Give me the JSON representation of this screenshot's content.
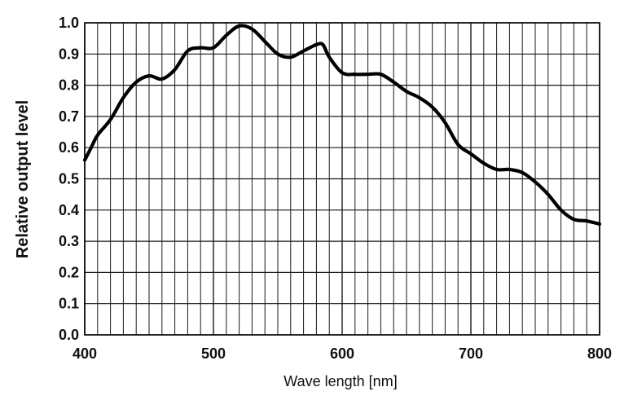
{
  "chart_data": {
    "type": "line",
    "title": "",
    "xlabel": "Wave length [nm]",
    "ylabel": "Relative output level",
    "xlim": [
      400,
      800
    ],
    "ylim": [
      0,
      1.0
    ],
    "x_ticks": [
      400,
      500,
      600,
      700,
      800
    ],
    "x_tick_labels": [
      "400",
      "500",
      "600",
      "700",
      "800"
    ],
    "y_ticks": [
      0,
      0.1,
      0.2,
      0.3,
      0.4,
      0.5,
      0.6,
      0.7,
      0.8,
      0.9,
      1.0
    ],
    "y_tick_labels": [
      "0.0",
      "0.1",
      "0.2",
      "0.3",
      "0.4",
      "0.5",
      "0.6",
      "0.7",
      "0.8",
      "0.9",
      "1.0"
    ],
    "grid": {
      "vertical_step_nm": 10,
      "horizontal_step": 0.1,
      "visible": true
    },
    "legend": "none",
    "colors": {
      "line": "#000000",
      "grid": "#1a1a1a",
      "text": "#111111",
      "background": "#ffffff"
    },
    "series": [
      {
        "x": [
          400,
          405,
          410,
          420,
          430,
          440,
          450,
          460,
          470,
          480,
          490,
          500,
          510,
          520,
          530,
          540,
          550,
          560,
          570,
          580,
          585,
          590,
          600,
          610,
          620,
          630,
          640,
          650,
          660,
          670,
          680,
          690,
          700,
          710,
          720,
          730,
          740,
          750,
          760,
          770,
          780,
          790,
          800
        ],
        "values": [
          0.56,
          0.6,
          0.64,
          0.69,
          0.76,
          0.81,
          0.83,
          0.82,
          0.85,
          0.91,
          0.92,
          0.92,
          0.96,
          0.99,
          0.98,
          0.94,
          0.9,
          0.89,
          0.91,
          0.93,
          0.93,
          0.89,
          0.84,
          0.835,
          0.835,
          0.835,
          0.81,
          0.78,
          0.76,
          0.73,
          0.68,
          0.61,
          0.58,
          0.55,
          0.53,
          0.53,
          0.52,
          0.49,
          0.45,
          0.4,
          0.37,
          0.365,
          0.355
        ]
      }
    ]
  }
}
